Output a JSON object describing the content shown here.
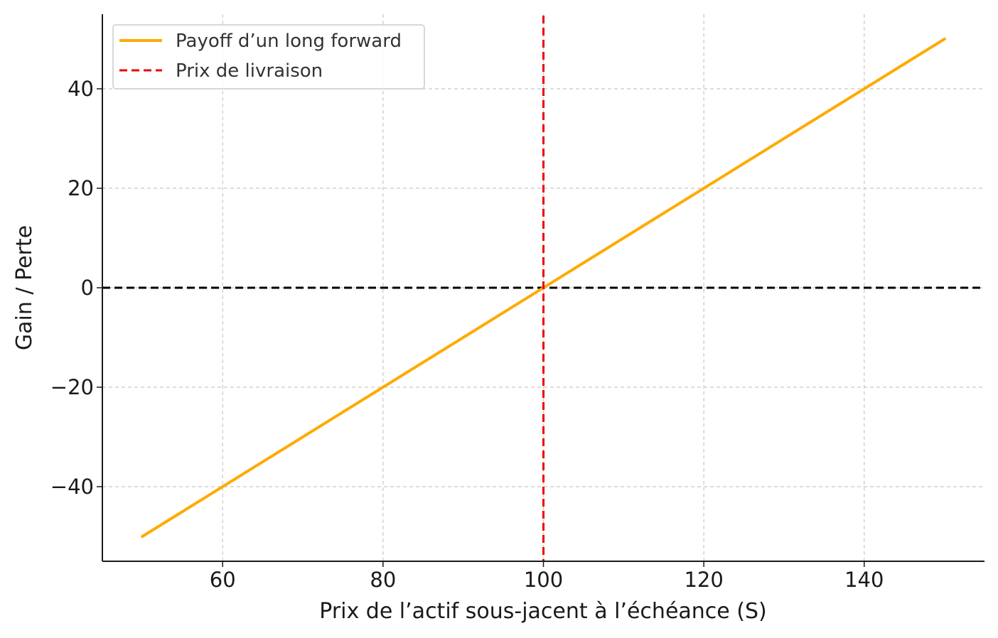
{
  "chart_data": {
    "type": "line",
    "title": "",
    "xlabel": "Prix de l’actif sous-jacent à l’échéance (S)",
    "ylabel": "Gain / Perte",
    "xlim": [
      45,
      155
    ],
    "ylim": [
      -55,
      55
    ],
    "xticks": [
      60,
      80,
      100,
      120,
      140
    ],
    "yticks": [
      -40,
      -20,
      0,
      20,
      40
    ],
    "xtick_labels": [
      "60",
      "80",
      "100",
      "120",
      "140"
    ],
    "ytick_labels": [
      "−40",
      "−20",
      "0",
      "20",
      "40"
    ],
    "grid": true,
    "legend_position": "top-left",
    "series": [
      {
        "name": "Payoff d’un long forward",
        "x": [
          50,
          150
        ],
        "y": [
          -50,
          50
        ],
        "color": "#FFAA00",
        "style": "solid"
      }
    ],
    "reference_lines": [
      {
        "name": "Prix de livraison",
        "orientation": "vertical",
        "value": 100,
        "color": "#EE0000",
        "style": "dashed",
        "in_legend": true
      },
      {
        "orientation": "horizontal",
        "value": 0,
        "color": "#000000",
        "style": "dashed",
        "in_legend": false
      }
    ]
  }
}
